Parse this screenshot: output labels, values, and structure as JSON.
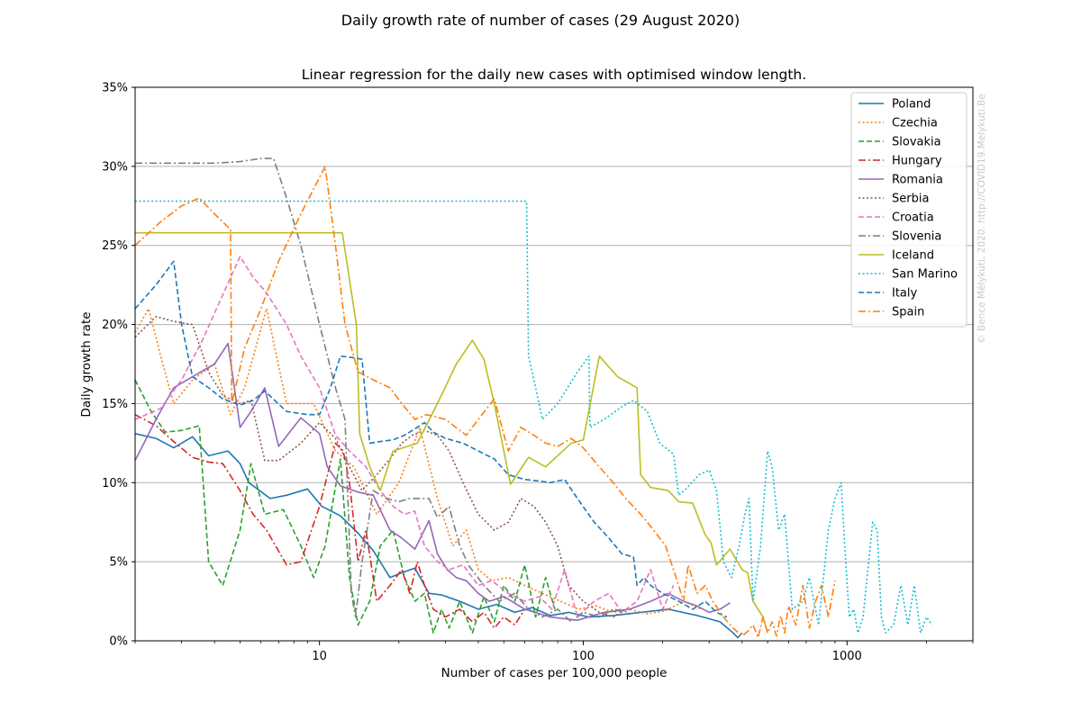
{
  "chart_data": {
    "type": "line",
    "suptitle": "Daily growth rate of number of cases (29 August 2020)",
    "title": "Linear regression for the daily new cases with optimised window length.",
    "xlabel": "Number of cases per 100,000 people",
    "ylabel": "Daily growth rate",
    "xscale": "log",
    "xlim": [
      2,
      3000
    ],
    "ylim": [
      0,
      35
    ],
    "x_ticks": [
      10,
      100,
      1000
    ],
    "x_tick_labels": [
      "10",
      "100",
      "1000"
    ],
    "y_ticks": [
      0,
      5,
      10,
      15,
      20,
      25,
      30,
      35
    ],
    "y_tick_labels": [
      "0%",
      "5%",
      "10%",
      "15%",
      "20%",
      "25%",
      "30%",
      "35%"
    ],
    "grid": "horizontal",
    "legend_position": "top-right",
    "watermark": "© Bence Mélykúti, 2020. http://COVID19.Melykuti.Be",
    "series": [
      {
        "name": "Poland",
        "color": "#1f77b4",
        "dash": "solid",
        "x": [
          2.0,
          2.4,
          2.8,
          3.3,
          3.8,
          4.5,
          5.0,
          5.4,
          6.5,
          7.5,
          9.0,
          10.2,
          12.0,
          14.0,
          16.0,
          18.5,
          20.5,
          23.0,
          26.0,
          29.0,
          34.0,
          40.0,
          47.0,
          55.0,
          64.0,
          75.0,
          88.0,
          105.0,
          130.0,
          165.0,
          210.0,
          270.0,
          330.0,
          370.0,
          385.0,
          400.0
        ],
        "y": [
          13.1,
          12.8,
          12.2,
          12.9,
          11.7,
          12.0,
          11.2,
          10.0,
          9.0,
          9.2,
          9.6,
          8.5,
          7.9,
          6.8,
          5.7,
          4.0,
          4.3,
          4.6,
          3.0,
          2.9,
          2.5,
          2.0,
          2.3,
          1.8,
          2.1,
          1.6,
          1.8,
          1.5,
          1.6,
          1.8,
          2.0,
          1.6,
          1.2,
          0.5,
          0.2,
          0.5
        ]
      },
      {
        "name": "Czechia",
        "color": "#ff7f0e",
        "dash": "dotted",
        "x": [
          2.0,
          2.25,
          2.5,
          2.8,
          3.3,
          4.0,
          4.6,
          5.2,
          6.3,
          7.5,
          9.5,
          11.5,
          13.5,
          16.5,
          20.0,
          24.0,
          28.0,
          32.0,
          36.0,
          40.0,
          45.0,
          52.0,
          60.0,
          70.0,
          82.0,
          96.0,
          112.0,
          130.0,
          150.0,
          175.0,
          205.0,
          240.0,
          280.0
        ],
        "y": [
          19.5,
          21.0,
          18.0,
          15.0,
          16.5,
          17.5,
          14.3,
          16.0,
          21.0,
          15.0,
          15.0,
          12.0,
          11.0,
          8.0,
          10.0,
          13.5,
          9.0,
          6.0,
          7.0,
          4.5,
          3.8,
          4.0,
          3.5,
          3.0,
          2.5,
          2.0,
          2.2,
          1.8,
          2.0,
          1.7,
          1.9,
          2.5,
          2.0
        ]
      },
      {
        "name": "Slovakia",
        "color": "#2ca02c",
        "dash": "dashed",
        "x": [
          2.0,
          2.3,
          2.6,
          3.0,
          3.5,
          3.8,
          4.3,
          5.0,
          5.5,
          6.2,
          7.3,
          8.5,
          9.5,
          10.5,
          12.0,
          13.0,
          14.0,
          15.5,
          17.0,
          19.0,
          21.0,
          23.0,
          25.0,
          27.0,
          29.0,
          31.0,
          34.0,
          38.0,
          42.0,
          46.0,
          50.0,
          55.0,
          60.0,
          66.0,
          72.0,
          78.0
        ],
        "y": [
          16.5,
          14.5,
          13.2,
          13.3,
          13.6,
          5.0,
          3.5,
          7.0,
          11.2,
          8.0,
          8.3,
          6.0,
          4.0,
          6.0,
          11.5,
          4.0,
          1.0,
          2.5,
          6.0,
          7.0,
          4.0,
          2.5,
          3.0,
          0.5,
          2.0,
          0.8,
          2.5,
          0.5,
          2.8,
          1.2,
          3.5,
          2.5,
          4.8,
          1.5,
          4.0,
          2.0
        ]
      },
      {
        "name": "Hungary",
        "color": "#d62728",
        "dash": "dashdot",
        "x": [
          2.0,
          2.4,
          2.8,
          3.3,
          3.8,
          4.3,
          5.0,
          5.6,
          6.3,
          7.5,
          8.5,
          10.0,
          11.5,
          12.3,
          13.0,
          14.0,
          15.0,
          16.5,
          18.5,
          20.5,
          22.0,
          23.5,
          25.0,
          27.0,
          30.0,
          34.0,
          38.0,
          42.0,
          46.0,
          50.0,
          55.0,
          60.0
        ],
        "y": [
          14.3,
          13.6,
          12.6,
          11.6,
          11.3,
          11.2,
          9.5,
          8.0,
          7.0,
          4.8,
          5.0,
          8.5,
          12.5,
          12.0,
          10.0,
          5.0,
          7.0,
          2.5,
          3.5,
          4.5,
          3.0,
          5.0,
          3.5,
          2.0,
          1.5,
          2.0,
          1.2,
          1.8,
          0.8,
          1.5,
          1.0,
          2.0
        ]
      },
      {
        "name": "Romania",
        "color": "#9467bd",
        "dash": "solid",
        "x": [
          2.0,
          2.4,
          2.8,
          3.3,
          4.0,
          4.5,
          5.0,
          5.5,
          6.2,
          7.0,
          8.5,
          10.0,
          10.7,
          12.0,
          14.0,
          16.0,
          18.5,
          20.5,
          23.0,
          26.0,
          28.0,
          30.5,
          33.0,
          36.0,
          40.0,
          44.0,
          50.0,
          60.0,
          75.0,
          95.0,
          120.0,
          150.0,
          180.0,
          210.0,
          240.0,
          270.0,
          300.0,
          330.0,
          360.0
        ],
        "y": [
          11.4,
          14.0,
          16.0,
          16.7,
          17.5,
          18.8,
          13.5,
          14.5,
          16.0,
          12.3,
          14.1,
          13.1,
          11.0,
          9.8,
          9.4,
          9.2,
          7.0,
          6.5,
          5.8,
          7.6,
          5.5,
          4.5,
          4.0,
          3.8,
          3.0,
          2.5,
          2.8,
          2.0,
          1.5,
          1.3,
          1.8,
          2.0,
          2.5,
          3.0,
          2.5,
          2.2,
          1.8,
          2.0,
          2.4
        ]
      },
      {
        "name": "Serbia",
        "color": "#8c564b",
        "dash": "dotted",
        "x": [
          2.0,
          2.4,
          2.8,
          3.3,
          3.8,
          4.3,
          5.0,
          5.5,
          6.2,
          7.0,
          8.5,
          10.0,
          11.5,
          13.0,
          14.5,
          16.5,
          18.5,
          20.5,
          22.5,
          25.0,
          28.0,
          31.0,
          35.0,
          40.0,
          46.0,
          52.0,
          58.0,
          65.0,
          72.0,
          80.0,
          88.0,
          100.0,
          115.0,
          130.0,
          145.0
        ],
        "y": [
          19.2,
          20.5,
          20.2,
          20.0,
          17.0,
          15.5,
          15.0,
          15.2,
          11.4,
          11.4,
          12.5,
          13.8,
          12.8,
          11.0,
          9.5,
          10.5,
          11.5,
          12.5,
          13.0,
          13.3,
          13.0,
          12.0,
          10.0,
          8.0,
          7.0,
          7.5,
          9.0,
          8.5,
          7.5,
          6.0,
          3.5,
          2.5,
          1.8,
          1.5,
          2.0
        ]
      },
      {
        "name": "Croatia",
        "color": "#e377c2",
        "dash": "dashed",
        "x": [
          2.0,
          2.5,
          3.0,
          3.6,
          4.2,
          5.0,
          5.6,
          6.3,
          7.5,
          8.5,
          10.0,
          11.5,
          13.0,
          15.0,
          17.0,
          19.0,
          21.0,
          23.0,
          25.0,
          28.0,
          31.0,
          35.0,
          40.0,
          45.0,
          52.0,
          60.0,
          68.0,
          76.0,
          85.0,
          95.0,
          110.0,
          125.0,
          140.0,
          160.0,
          180.0,
          200.0,
          220.0
        ],
        "y": [
          14.0,
          14.7,
          16.5,
          19.0,
          21.5,
          24.3,
          23.0,
          22.0,
          20.0,
          18.0,
          16.0,
          13.0,
          12.0,
          11.0,
          9.5,
          8.5,
          8.0,
          8.2,
          6.0,
          5.0,
          4.5,
          4.8,
          3.5,
          3.8,
          3.0,
          2.5,
          2.8,
          2.0,
          4.5,
          1.5,
          2.5,
          3.0,
          1.8,
          2.5,
          4.5,
          2.0,
          3.5
        ]
      },
      {
        "name": "Slovenia",
        "color": "#7f7f7f",
        "dash": "dashdot",
        "x": [
          2.0,
          3.0,
          4.0,
          5.0,
          6.0,
          6.7,
          7.5,
          8.5,
          10.0,
          11.5,
          12.5,
          13.2,
          13.7,
          14.5,
          16.0,
          18.0,
          20.0,
          22.0,
          24.0,
          26.0,
          28.0,
          31.0,
          34.0,
          37.0,
          42.0,
          48.0,
          55.0,
          62.0,
          70.0,
          80.0,
          90.0,
          100.0,
          115.0,
          130.0,
          150.0
        ],
        "y": [
          30.2,
          30.2,
          30.2,
          30.3,
          30.5,
          30.5,
          28.0,
          25.0,
          20.0,
          16.0,
          14.0,
          3.0,
          1.5,
          5.0,
          9.5,
          9.0,
          8.8,
          9.0,
          9.0,
          9.0,
          7.8,
          8.5,
          6.0,
          4.7,
          3.5,
          2.5,
          3.0,
          2.0,
          1.5,
          2.0,
          1.2,
          1.8,
          1.5,
          2.0,
          1.8
        ]
      },
      {
        "name": "Iceland",
        "color": "#bcbd22",
        "dash": "solid",
        "x": [
          2.0,
          5.0,
          10.0,
          12.2,
          13.8,
          14.2,
          15.5,
          17.0,
          19.0,
          23.5,
          28.0,
          33.0,
          38.0,
          42.0,
          46.0,
          53.0,
          62.0,
          72.0,
          90.0,
          100.0,
          115.0,
          135.0,
          160.0,
          165.0,
          180.0,
          210.0,
          230.0,
          260.0,
          270.0,
          290.0,
          305.0,
          320.0,
          360.0,
          400.0,
          420.0,
          440.0,
          460.0,
          480.0,
          500.0
        ],
        "y": [
          25.8,
          25.8,
          25.8,
          25.8,
          20.0,
          13.1,
          11.0,
          9.5,
          12.0,
          12.5,
          15.0,
          17.5,
          19.0,
          17.8,
          15.0,
          9.9,
          11.6,
          11.0,
          12.5,
          12.7,
          18.0,
          16.7,
          16.0,
          10.5,
          9.7,
          9.5,
          8.8,
          8.7,
          8.0,
          6.7,
          6.2,
          4.8,
          5.8,
          4.5,
          4.3,
          2.5,
          2.0,
          1.5,
          0.5
        ]
      },
      {
        "name": "San Marino",
        "color": "#17becf",
        "dash": "dotted",
        "x": [
          2.0,
          10.0,
          30.0,
          60.0,
          61.0,
          62.0,
          66.0,
          70.0,
          80.0,
          95.0,
          105.0,
          106.0,
          120.0,
          140.0,
          155.0,
          175.0,
          195.0,
          220.0,
          230.0,
          245.0,
          275.0,
          300.0,
          320.0,
          340.0,
          365.0,
          390.0,
          410.0,
          425.0,
          440.0,
          470.0,
          500.0,
          520.0,
          550.0,
          580.0,
          620.0,
          680.0,
          720.0,
          780.0,
          850.0,
          900.0,
          950.0,
          980.0,
          1020.0,
          1060.0,
          1100.0,
          1150.0,
          1250.0,
          1300.0,
          1350.0,
          1400.0,
          1500.0,
          1600.0,
          1700.0,
          1800.0,
          1900.0,
          2000.0,
          2100.0
        ],
        "y": [
          27.8,
          27.8,
          27.8,
          27.8,
          27.8,
          18.0,
          16.0,
          14.0,
          15.0,
          17.0,
          18.0,
          13.5,
          14.0,
          14.8,
          15.2,
          14.5,
          12.5,
          11.8,
          9.2,
          9.6,
          10.5,
          10.8,
          9.5,
          5.0,
          4.0,
          6.0,
          8.0,
          9.0,
          2.5,
          6.0,
          12.0,
          11.0,
          7.0,
          8.0,
          2.0,
          2.5,
          4.0,
          1.0,
          7.0,
          9.0,
          10.0,
          6.0,
          1.5,
          2.0,
          0.5,
          1.5,
          7.5,
          7.0,
          1.5,
          0.5,
          1.0,
          3.5,
          1.0,
          3.5,
          0.5,
          1.5,
          1.0
        ]
      },
      {
        "name": "Italy",
        "color": "#1f77b4",
        "dash": "dashed",
        "x": [
          2.0,
          2.4,
          2.8,
          3.0,
          3.3,
          3.8,
          4.3,
          5.0,
          5.6,
          6.2,
          7.5,
          9.0,
          10.0,
          11.0,
          12.0,
          13.5,
          14.5,
          15.5,
          17.0,
          19.0,
          21.0,
          23.0,
          25.0,
          27.0,
          30.0,
          35.0,
          40.0,
          46.0,
          52.0,
          60.0,
          68.0,
          75.0,
          85.0,
          95.0,
          110.0,
          125.0,
          140.0,
          155.0,
          160.0,
          170.0,
          180.0,
          200.0,
          230.0,
          260.0,
          290.0,
          320.0,
          350.0
        ],
        "y": [
          21.0,
          22.5,
          24.0,
          20.0,
          16.7,
          16.0,
          15.3,
          14.9,
          15.2,
          15.8,
          14.5,
          14.3,
          14.3,
          16.0,
          18.0,
          17.9,
          17.8,
          12.5,
          12.6,
          12.7,
          13.0,
          13.4,
          13.8,
          13.2,
          12.8,
          12.5,
          12.0,
          11.5,
          10.5,
          10.2,
          10.1,
          10.0,
          10.2,
          9.0,
          7.5,
          6.5,
          5.5,
          5.3,
          3.5,
          4.0,
          3.5,
          3.0,
          2.5,
          2.0,
          2.5,
          1.8,
          1.5
        ]
      },
      {
        "name": "Spain",
        "color": "#ff7f0e",
        "dash": "dashdot",
        "x": [
          2.0,
          2.5,
          3.0,
          3.5,
          4.0,
          4.6,
          4.65,
          5.2,
          6.0,
          7.0,
          8.5,
          10.5,
          11.5,
          12.5,
          14.0,
          16.0,
          18.5,
          20.5,
          23.0,
          25.5,
          30.0,
          36.0,
          40.0,
          46.0,
          52.0,
          58.0,
          65.0,
          72.0,
          80.0,
          90.0,
          100.0,
          115.0,
          130.0,
          145.0,
          165.0,
          185.0,
          205.0,
          225.0,
          240.0,
          250.0,
          270.0,
          290.0,
          310.0,
          340.0,
          370.0,
          400.0,
          420.0,
          440.0,
          460.0,
          480.0,
          500.0,
          520.0,
          540.0,
          560.0,
          580.0,
          600.0,
          640.0,
          680.0,
          720.0,
          760.0,
          800.0,
          850.0,
          900.0
        ],
        "y": [
          25.0,
          26.5,
          27.5,
          28.0,
          27.0,
          26.0,
          15.0,
          18.5,
          21.0,
          24.0,
          27.0,
          30.0,
          25.0,
          20.0,
          17.0,
          16.5,
          16.0,
          15.0,
          14.0,
          14.3,
          14.0,
          13.0,
          14.0,
          15.3,
          12.0,
          13.5,
          13.0,
          12.5,
          12.3,
          12.8,
          12.2,
          11.0,
          10.0,
          9.0,
          8.0,
          7.0,
          6.0,
          4.0,
          2.5,
          4.8,
          3.0,
          3.5,
          2.5,
          1.5,
          0.8,
          0.3,
          0.6,
          1.0,
          0.2,
          1.5,
          0.5,
          1.2,
          0.3,
          1.6,
          0.5,
          2.2,
          1.0,
          3.5,
          0.8,
          2.5,
          3.5,
          1.5,
          3.8
        ]
      }
    ]
  }
}
